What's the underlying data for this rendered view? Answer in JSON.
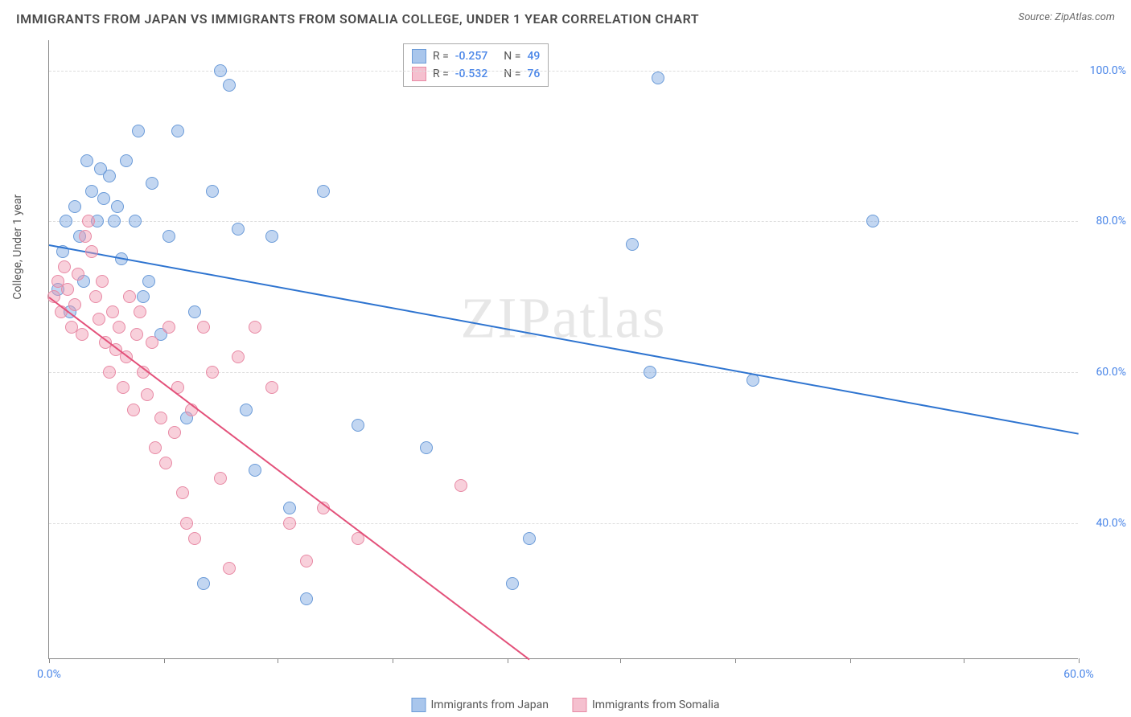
{
  "title": "IMMIGRANTS FROM JAPAN VS IMMIGRANTS FROM SOMALIA COLLEGE, UNDER 1 YEAR CORRELATION CHART",
  "source": "Source: ZipAtlas.com",
  "watermark": "ZIPatlas",
  "y_axis_title": "College, Under 1 year",
  "chart": {
    "type": "scatter",
    "xlim": [
      0,
      60
    ],
    "ylim": [
      22,
      104
    ],
    "x_ticks": [
      0,
      6.7,
      13.3,
      20,
      26.7,
      33.3,
      40,
      46.7,
      53.3,
      60
    ],
    "x_tick_labels": {
      "0": "0.0%",
      "60": "60.0%"
    },
    "y_ticks": [
      40,
      60,
      80,
      100
    ],
    "y_tick_labels": {
      "40": "40.0%",
      "60": "60.0%",
      "80": "80.0%",
      "100": "100.0%"
    },
    "grid_color": "#dddddd",
    "axis_color": "#888888",
    "background_color": "#ffffff",
    "label_color": "#4a86e8",
    "label_fontsize": 14,
    "title_fontsize": 16,
    "title_color": "#4a4a4a",
    "marker_radius": 8,
    "marker_stroke_width": 1.5,
    "series": [
      {
        "name": "Immigrants from Japan",
        "color_fill": "rgba(120,165,225,0.45)",
        "color_stroke": "#6b9bd8",
        "swatch_fill": "#a9c6ec",
        "swatch_border": "#6b9bd8",
        "R": "-0.257",
        "N": "49",
        "regression": {
          "x1": 0,
          "y1": 77,
          "x2": 60,
          "y2": 52,
          "color": "#2e74d0",
          "width": 2
        },
        "points": [
          [
            0.5,
            71
          ],
          [
            0.8,
            76
          ],
          [
            1.0,
            80
          ],
          [
            1.2,
            68
          ],
          [
            1.5,
            82
          ],
          [
            1.8,
            78
          ],
          [
            2.0,
            72
          ],
          [
            2.2,
            88
          ],
          [
            2.5,
            84
          ],
          [
            2.8,
            80
          ],
          [
            3.0,
            87
          ],
          [
            3.2,
            83
          ],
          [
            3.5,
            86
          ],
          [
            3.8,
            80
          ],
          [
            4.0,
            82
          ],
          [
            4.2,
            75
          ],
          [
            4.5,
            88
          ],
          [
            5.0,
            80
          ],
          [
            5.2,
            92
          ],
          [
            5.5,
            70
          ],
          [
            5.8,
            72
          ],
          [
            6.0,
            85
          ],
          [
            6.5,
            65
          ],
          [
            7.0,
            78
          ],
          [
            7.5,
            92
          ],
          [
            8.0,
            54
          ],
          [
            8.5,
            68
          ],
          [
            9.0,
            32
          ],
          [
            9.5,
            84
          ],
          [
            10.0,
            100
          ],
          [
            10.5,
            98
          ],
          [
            11.0,
            79
          ],
          [
            11.5,
            55
          ],
          [
            12.0,
            47
          ],
          [
            13.0,
            78
          ],
          [
            14.0,
            42
          ],
          [
            15.0,
            30
          ],
          [
            16.0,
            84
          ],
          [
            18.0,
            53
          ],
          [
            22.0,
            50
          ],
          [
            27.0,
            32
          ],
          [
            28.0,
            38
          ],
          [
            34.0,
            77
          ],
          [
            35.0,
            60
          ],
          [
            35.5,
            99
          ],
          [
            41.0,
            59
          ],
          [
            48.0,
            80
          ]
        ]
      },
      {
        "name": "Immigrants from Somalia",
        "color_fill": "rgba(240,150,175,0.45)",
        "color_stroke": "#e88aa5",
        "swatch_fill": "#f5c0cf",
        "swatch_border": "#e88aa5",
        "R": "-0.532",
        "N": "76",
        "regression": {
          "x1": 0,
          "y1": 70,
          "x2": 28,
          "y2": 22,
          "color": "#e3517a",
          "width": 2
        },
        "points": [
          [
            0.3,
            70
          ],
          [
            0.5,
            72
          ],
          [
            0.7,
            68
          ],
          [
            0.9,
            74
          ],
          [
            1.1,
            71
          ],
          [
            1.3,
            66
          ],
          [
            1.5,
            69
          ],
          [
            1.7,
            73
          ],
          [
            1.9,
            65
          ],
          [
            2.1,
            78
          ],
          [
            2.3,
            80
          ],
          [
            2.5,
            76
          ],
          [
            2.7,
            70
          ],
          [
            2.9,
            67
          ],
          [
            3.1,
            72
          ],
          [
            3.3,
            64
          ],
          [
            3.5,
            60
          ],
          [
            3.7,
            68
          ],
          [
            3.9,
            63
          ],
          [
            4.1,
            66
          ],
          [
            4.3,
            58
          ],
          [
            4.5,
            62
          ],
          [
            4.7,
            70
          ],
          [
            4.9,
            55
          ],
          [
            5.1,
            65
          ],
          [
            5.3,
            68
          ],
          [
            5.5,
            60
          ],
          [
            5.7,
            57
          ],
          [
            6.0,
            64
          ],
          [
            6.2,
            50
          ],
          [
            6.5,
            54
          ],
          [
            6.8,
            48
          ],
          [
            7.0,
            66
          ],
          [
            7.3,
            52
          ],
          [
            7.5,
            58
          ],
          [
            7.8,
            44
          ],
          [
            8.0,
            40
          ],
          [
            8.3,
            55
          ],
          [
            8.5,
            38
          ],
          [
            9.0,
            66
          ],
          [
            9.5,
            60
          ],
          [
            10.0,
            46
          ],
          [
            10.5,
            34
          ],
          [
            11.0,
            62
          ],
          [
            12.0,
            66
          ],
          [
            13.0,
            58
          ],
          [
            14.0,
            40
          ],
          [
            15.0,
            35
          ],
          [
            16.0,
            42
          ],
          [
            18.0,
            38
          ],
          [
            24.0,
            45
          ]
        ]
      }
    ]
  },
  "legend": {
    "items": [
      {
        "label": "Immigrants from Japan"
      },
      {
        "label": "Immigrants from Somalia"
      }
    ]
  }
}
